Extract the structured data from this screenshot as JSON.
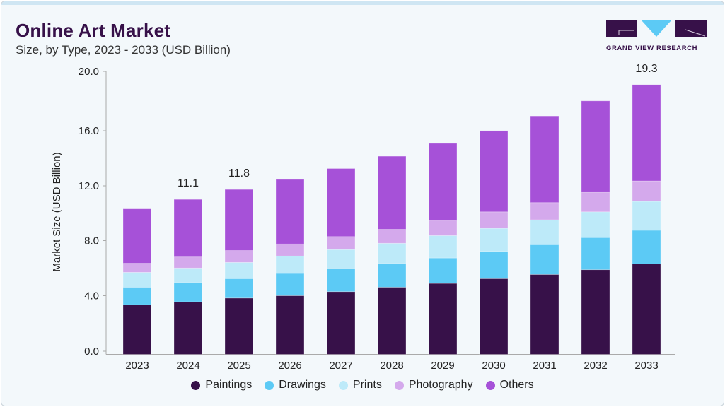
{
  "header": {
    "title": "Online Art Market",
    "subtitle": "Size, by Type, 2023 - 2033 (USD Billion)",
    "logo_text": "GRAND VIEW RESEARCH"
  },
  "chart_data": {
    "type": "bar",
    "stacked": true,
    "ylabel": "Market Size (USD Billion)",
    "xlabel": "",
    "ylim": [
      0,
      20
    ],
    "yticks": [
      "0.0",
      "4.0",
      "8.0",
      "12.0",
      "16.0",
      "20.0"
    ],
    "grid": false,
    "legend_position": "bottom",
    "categories": [
      "2023",
      "2024",
      "2025",
      "2026",
      "2027",
      "2028",
      "2029",
      "2030",
      "2031",
      "2032",
      "2033"
    ],
    "series": [
      {
        "name": "Paintings",
        "color": "#371149",
        "values": [
          3.55,
          3.76,
          4.03,
          4.2,
          4.49,
          4.81,
          5.08,
          5.42,
          5.72,
          6.06,
          6.47
        ]
      },
      {
        "name": "Drawings",
        "color": "#5ccaf5",
        "values": [
          1.26,
          1.37,
          1.39,
          1.59,
          1.64,
          1.71,
          1.82,
          1.94,
          2.13,
          2.3,
          2.41
        ]
      },
      {
        "name": "Prints",
        "color": "#bdeaf9",
        "values": [
          1.06,
          1.05,
          1.16,
          1.25,
          1.37,
          1.43,
          1.6,
          1.66,
          1.78,
          1.84,
          2.07
        ]
      },
      {
        "name": "Photography",
        "color": "#d4a9ec",
        "values": [
          0.65,
          0.79,
          0.85,
          0.86,
          0.93,
          1.0,
          1.06,
          1.18,
          1.23,
          1.39,
          1.46
        ]
      },
      {
        "name": "Others",
        "color": "#a651d8",
        "values": [
          3.89,
          4.12,
          4.37,
          4.62,
          4.87,
          5.23,
          5.54,
          5.81,
          6.2,
          6.55,
          6.89
        ]
      }
    ],
    "data_labels": [
      {
        "category": "2024",
        "text": "11.1"
      },
      {
        "category": "2025",
        "text": "11.8"
      },
      {
        "category": "2033",
        "text": "19.3"
      }
    ]
  }
}
